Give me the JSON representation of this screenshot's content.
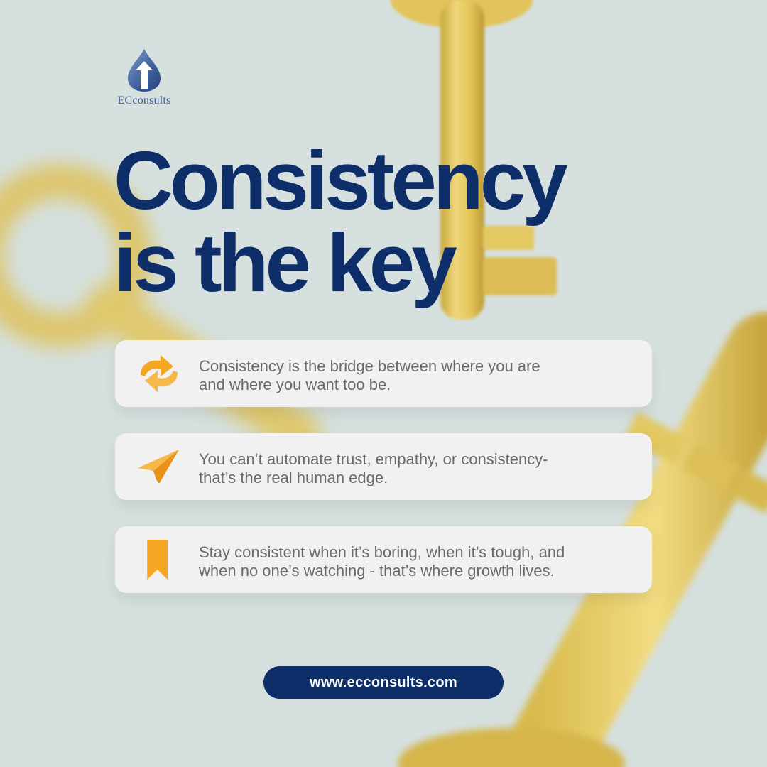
{
  "brand": {
    "logo_icon": "droplet-arrow-logo",
    "name": "ECconsults",
    "primary_color": "#0e2e6a"
  },
  "headline": {
    "line1": "Consistency",
    "line2": "is the key"
  },
  "cards": [
    {
      "icon": "refresh-arrows-icon",
      "line1": "Consistency is the bridge between where you are",
      "line2": "and where you want too be."
    },
    {
      "icon": "paper-plane-icon",
      "line1": "You can’t automate trust, empathy, or consistency-",
      "line2": "that’s the real human edge."
    },
    {
      "icon": "bookmark-icon",
      "line1": "Stay consistent when it’s boring, when it’s tough, and",
      "line2": "when no one’s watching - that’s where growth lives."
    }
  ],
  "website": {
    "label": "www.ecconsults.com"
  },
  "colors": {
    "background": "#d5e0df",
    "key_gold": "#e2c35c",
    "icon_orange": "#f5a623",
    "card_background": "#f1f1f1",
    "card_text": "#6a6a6a"
  }
}
